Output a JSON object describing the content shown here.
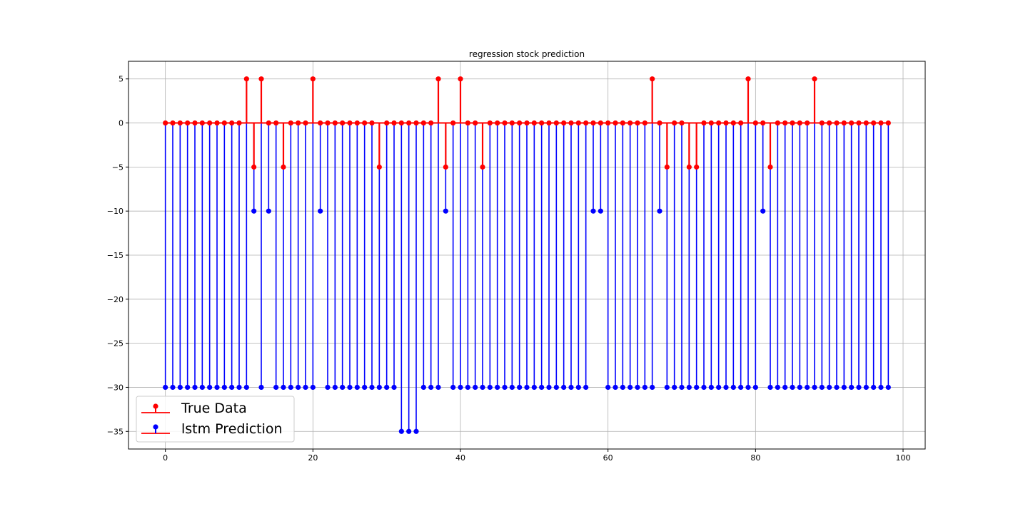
{
  "chart_data": {
    "type": "stem",
    "title": "regression stock prediction",
    "xlabel": "",
    "ylabel": "",
    "xlim": [
      -5,
      103
    ],
    "ylim": [
      -37,
      7
    ],
    "xticks": [
      0,
      20,
      40,
      60,
      80,
      100
    ],
    "yticks": [
      5,
      0,
      -5,
      -10,
      -15,
      -20,
      -25,
      -30,
      -35
    ],
    "grid": true,
    "legend_placement": "lower-left",
    "baseline": 0,
    "baseline_color": "#ff0000",
    "x": [
      0,
      1,
      2,
      3,
      4,
      5,
      6,
      7,
      8,
      9,
      10,
      11,
      12,
      13,
      14,
      15,
      16,
      17,
      18,
      19,
      20,
      21,
      22,
      23,
      24,
      25,
      26,
      27,
      28,
      29,
      30,
      31,
      32,
      33,
      34,
      35,
      36,
      37,
      38,
      39,
      40,
      41,
      42,
      43,
      44,
      45,
      46,
      47,
      48,
      49,
      50,
      51,
      52,
      53,
      54,
      55,
      56,
      57,
      58,
      59,
      60,
      61,
      62,
      63,
      64,
      65,
      66,
      67,
      68,
      69,
      70,
      71,
      72,
      73,
      74,
      75,
      76,
      77,
      78,
      79,
      80,
      81,
      82,
      83,
      84,
      85,
      86,
      87,
      88,
      89,
      90,
      91,
      92,
      93,
      94,
      95,
      96,
      97,
      98
    ],
    "series": [
      {
        "name": "lstm Prediction",
        "color": "#0000ff",
        "values": [
          -30,
          -30,
          -30,
          -30,
          -30,
          -30,
          -30,
          -30,
          -30,
          -30,
          -30,
          -30,
          -10,
          -30,
          -10,
          -30,
          -30,
          -30,
          -30,
          -30,
          -30,
          -10,
          -30,
          -30,
          -30,
          -30,
          -30,
          -30,
          -30,
          -30,
          -30,
          -30,
          -35,
          -35,
          -35,
          -30,
          -30,
          -30,
          -10,
          -30,
          -30,
          -30,
          -30,
          -30,
          -30,
          -30,
          -30,
          -30,
          -30,
          -30,
          -30,
          -30,
          -30,
          -30,
          -30,
          -30,
          -30,
          -30,
          -10,
          -10,
          -30,
          -30,
          -30,
          -30,
          -30,
          -30,
          -30,
          -10,
          -30,
          -30,
          -30,
          -30,
          -30,
          -30,
          -30,
          -30,
          -30,
          -30,
          -30,
          -30,
          -30,
          -10,
          -30,
          -30,
          -30,
          -30,
          -30,
          -30,
          -30,
          -30,
          -30,
          -30,
          -30,
          -30,
          -30,
          -30,
          -30,
          -30,
          -30
        ]
      },
      {
        "name": "True Data",
        "color": "#ff0000",
        "values": [
          0,
          0,
          0,
          0,
          0,
          0,
          0,
          0,
          0,
          0,
          0,
          5,
          -5,
          5,
          0,
          0,
          -5,
          0,
          0,
          0,
          5,
          0,
          0,
          0,
          0,
          0,
          0,
          0,
          0,
          -5,
          0,
          0,
          0,
          0,
          0,
          0,
          0,
          5,
          -5,
          0,
          5,
          0,
          0,
          -5,
          0,
          0,
          0,
          0,
          0,
          0,
          0,
          0,
          0,
          0,
          0,
          0,
          0,
          0,
          0,
          0,
          0,
          0,
          0,
          0,
          0,
          0,
          5,
          0,
          -5,
          0,
          0,
          -5,
          -5,
          0,
          0,
          0,
          0,
          0,
          0,
          5,
          0,
          0,
          -5,
          0,
          0,
          0,
          0,
          0,
          5,
          0,
          0,
          0,
          0,
          0,
          0,
          0,
          0,
          0,
          0
        ]
      }
    ]
  }
}
